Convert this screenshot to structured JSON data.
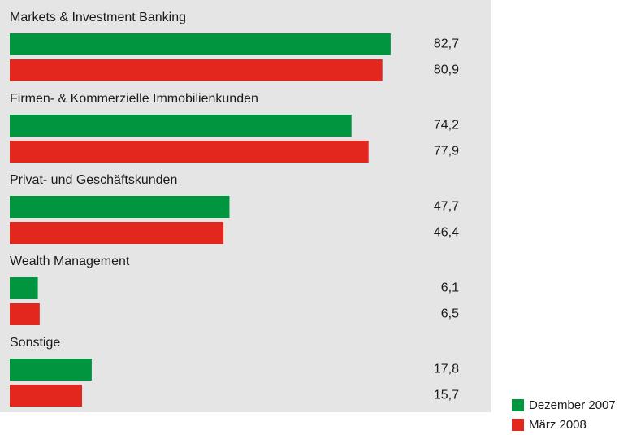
{
  "chart_data": {
    "type": "bar",
    "orientation": "horizontal",
    "categories": [
      "Markets & Investment Banking",
      "Firmen- & Kommerzielle Immobilienkunden",
      "Privat- und Geschäftskunden",
      "Wealth Management",
      "Sonstige"
    ],
    "series": [
      {
        "name": "Dezember 2007",
        "color": "#00963f",
        "values": [
          82.7,
          74.2,
          47.7,
          6.1,
          17.8
        ],
        "value_labels": [
          "82,7",
          "74,2",
          "47,7",
          "6,1",
          "17,8"
        ]
      },
      {
        "name": "März 2008",
        "color": "#e3261e",
        "values": [
          80.9,
          77.9,
          46.4,
          6.5,
          15.7
        ],
        "value_labels": [
          "80,9",
          "77,9",
          "46,4",
          "6,5",
          "15,7"
        ]
      }
    ]
  }
}
